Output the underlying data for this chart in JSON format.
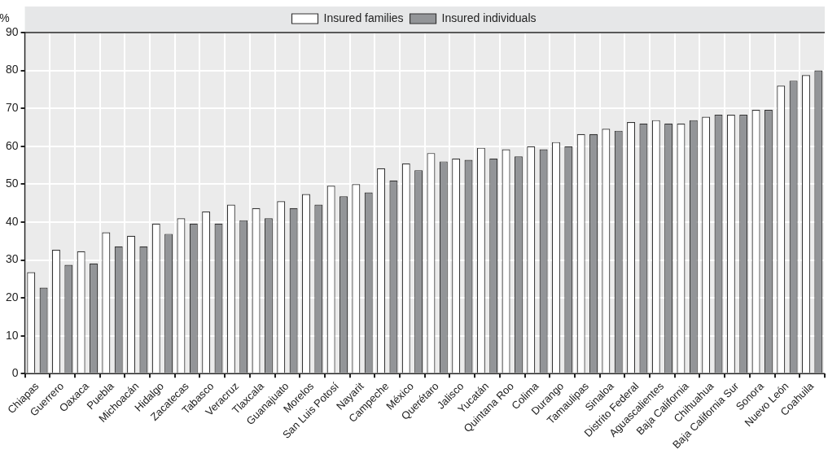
{
  "chart_data": {
    "type": "bar",
    "ylabel": "%",
    "categories": [
      "Chiapas",
      "Guerrero",
      "Oaxaca",
      "Puebla",
      "Michoacán",
      "Hidalgo",
      "Zacatecas",
      "Tabasco",
      "Veracruz",
      "Tlaxcala",
      "Guanajuato",
      "Morelos",
      "San Luis Potosí",
      "Nayarit",
      "Campeche",
      "México",
      "Querétaro",
      "Jalisco",
      "Yucatán",
      "Quintana Roo",
      "Colima",
      "Durango",
      "Tamaulipas",
      "Sinaloa",
      "Distrito Federal",
      "Aguascalientes",
      "Baja California",
      "Chihuahua",
      "Baja California Sur",
      "Sonora",
      "Nuevo León",
      "Coahuila"
    ],
    "series": [
      {
        "name": "Insured families",
        "color": "#ffffff",
        "values": [
          26.8,
          32.7,
          32.3,
          37.3,
          36.4,
          39.6,
          41,
          42.8,
          44.6,
          43.7,
          45.5,
          47.4,
          49.6,
          50,
          54.2,
          55.5,
          58.2,
          56.8,
          59.6,
          59.2,
          60,
          61.1,
          63.2,
          64.6,
          66.4,
          66.9,
          66,
          67.8,
          68.3,
          69.6,
          76,
          78.8
        ]
      },
      {
        "name": "Insured individuals",
        "color": "#939598",
        "values": [
          22.7,
          28.7,
          29.1,
          33.6,
          33.6,
          36.9,
          39.6,
          39.6,
          40.5,
          41,
          43.7,
          44.6,
          46.8,
          47.8,
          51,
          53.7,
          56,
          56.4,
          56.8,
          57.3,
          59.2,
          60,
          63.2,
          64.1,
          66,
          66,
          66.9,
          68.3,
          68.3,
          69.6,
          77.3,
          80
        ]
      }
    ],
    "ylim": [
      0,
      90
    ],
    "yticks": [
      0,
      10,
      20,
      30,
      40,
      50,
      60,
      70,
      80,
      90
    ],
    "grid": true,
    "legend": "top"
  }
}
